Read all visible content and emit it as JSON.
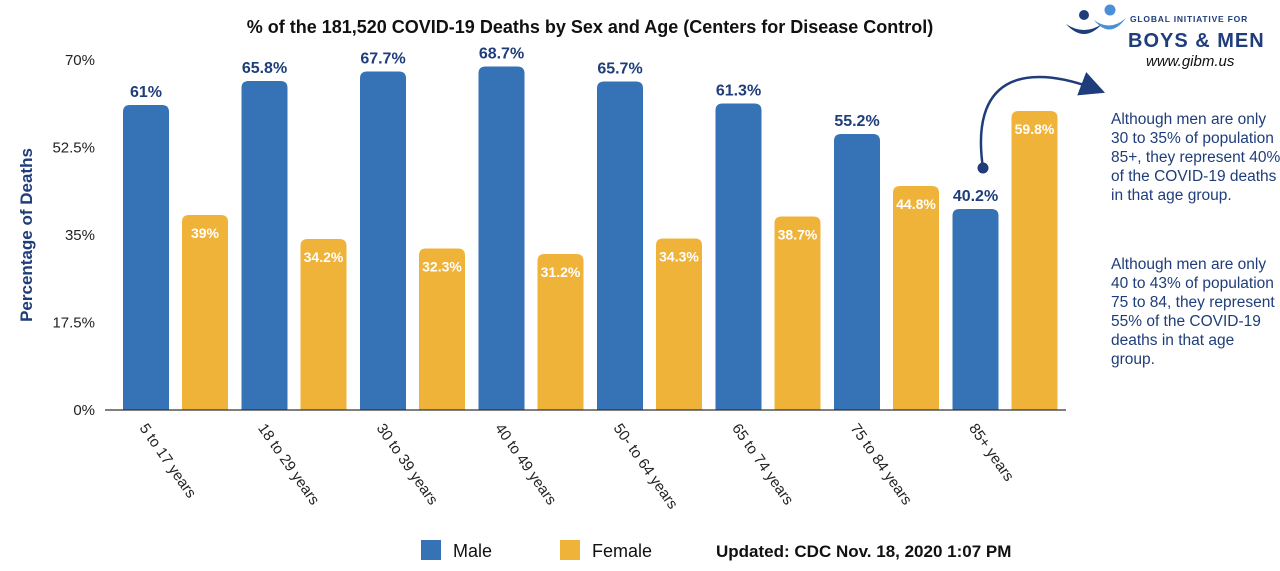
{
  "chart_data": {
    "type": "bar",
    "title": "% of the 181,520 COVID-19 Deaths by Sex and Age (Centers for Disease Control)",
    "ylabel": "Percentage of Deaths",
    "xlabel": "",
    "ylim": [
      0,
      70
    ],
    "yticks": [
      "0%",
      "17.5%",
      "35%",
      "52.5%",
      "70%"
    ],
    "ytick_values": [
      0,
      17.5,
      35,
      52.5,
      70
    ],
    "categories": [
      "5 to 17 years",
      "18 to 29 years",
      "30 to 39 years",
      "40 to 49 years",
      "50- to 64 years",
      "65 to 74 years",
      "75 to 84 years",
      "85+ years"
    ],
    "series": [
      {
        "name": "Male",
        "color": "#3572b6",
        "values": [
          61,
          65.8,
          67.7,
          68.7,
          65.7,
          61.3,
          55.2,
          40.2
        ],
        "labels": [
          "61%",
          "65.8%",
          "67.7%",
          "68.7%",
          "65.7%",
          "61.3%",
          "55.2%",
          "40.2%"
        ]
      },
      {
        "name": "Female",
        "color": "#f0b33a",
        "values": [
          39,
          34.2,
          32.3,
          31.2,
          34.3,
          38.7,
          44.8,
          59.8
        ],
        "labels": [
          "39%",
          "34.2%",
          "32.3%",
          "31.2%",
          "34.3%",
          "38.7%",
          "44.8%",
          "59.8%"
        ]
      }
    ],
    "grid": false,
    "legend": "bottom"
  },
  "footer": {
    "updated": "Updated: CDC Nov. 18, 2020 1:07 PM"
  },
  "notes": [
    "Although men are only 30 to 35% of population 85+, they represent 40% of the COVID-19 deaths in that age group.",
    "Although men are only 40 to 43% of population 75 to 84, they represent 55% of the COVID-19 deaths in that age group."
  ],
  "logo": {
    "line1": "GLOBAL INITIATIVE FOR",
    "line2": "BOYS & MEN",
    "url": "www.gibm.us"
  },
  "colors": {
    "male": "#3572b6",
    "female": "#f0b33a",
    "text_blue": "#1f3d7a"
  }
}
